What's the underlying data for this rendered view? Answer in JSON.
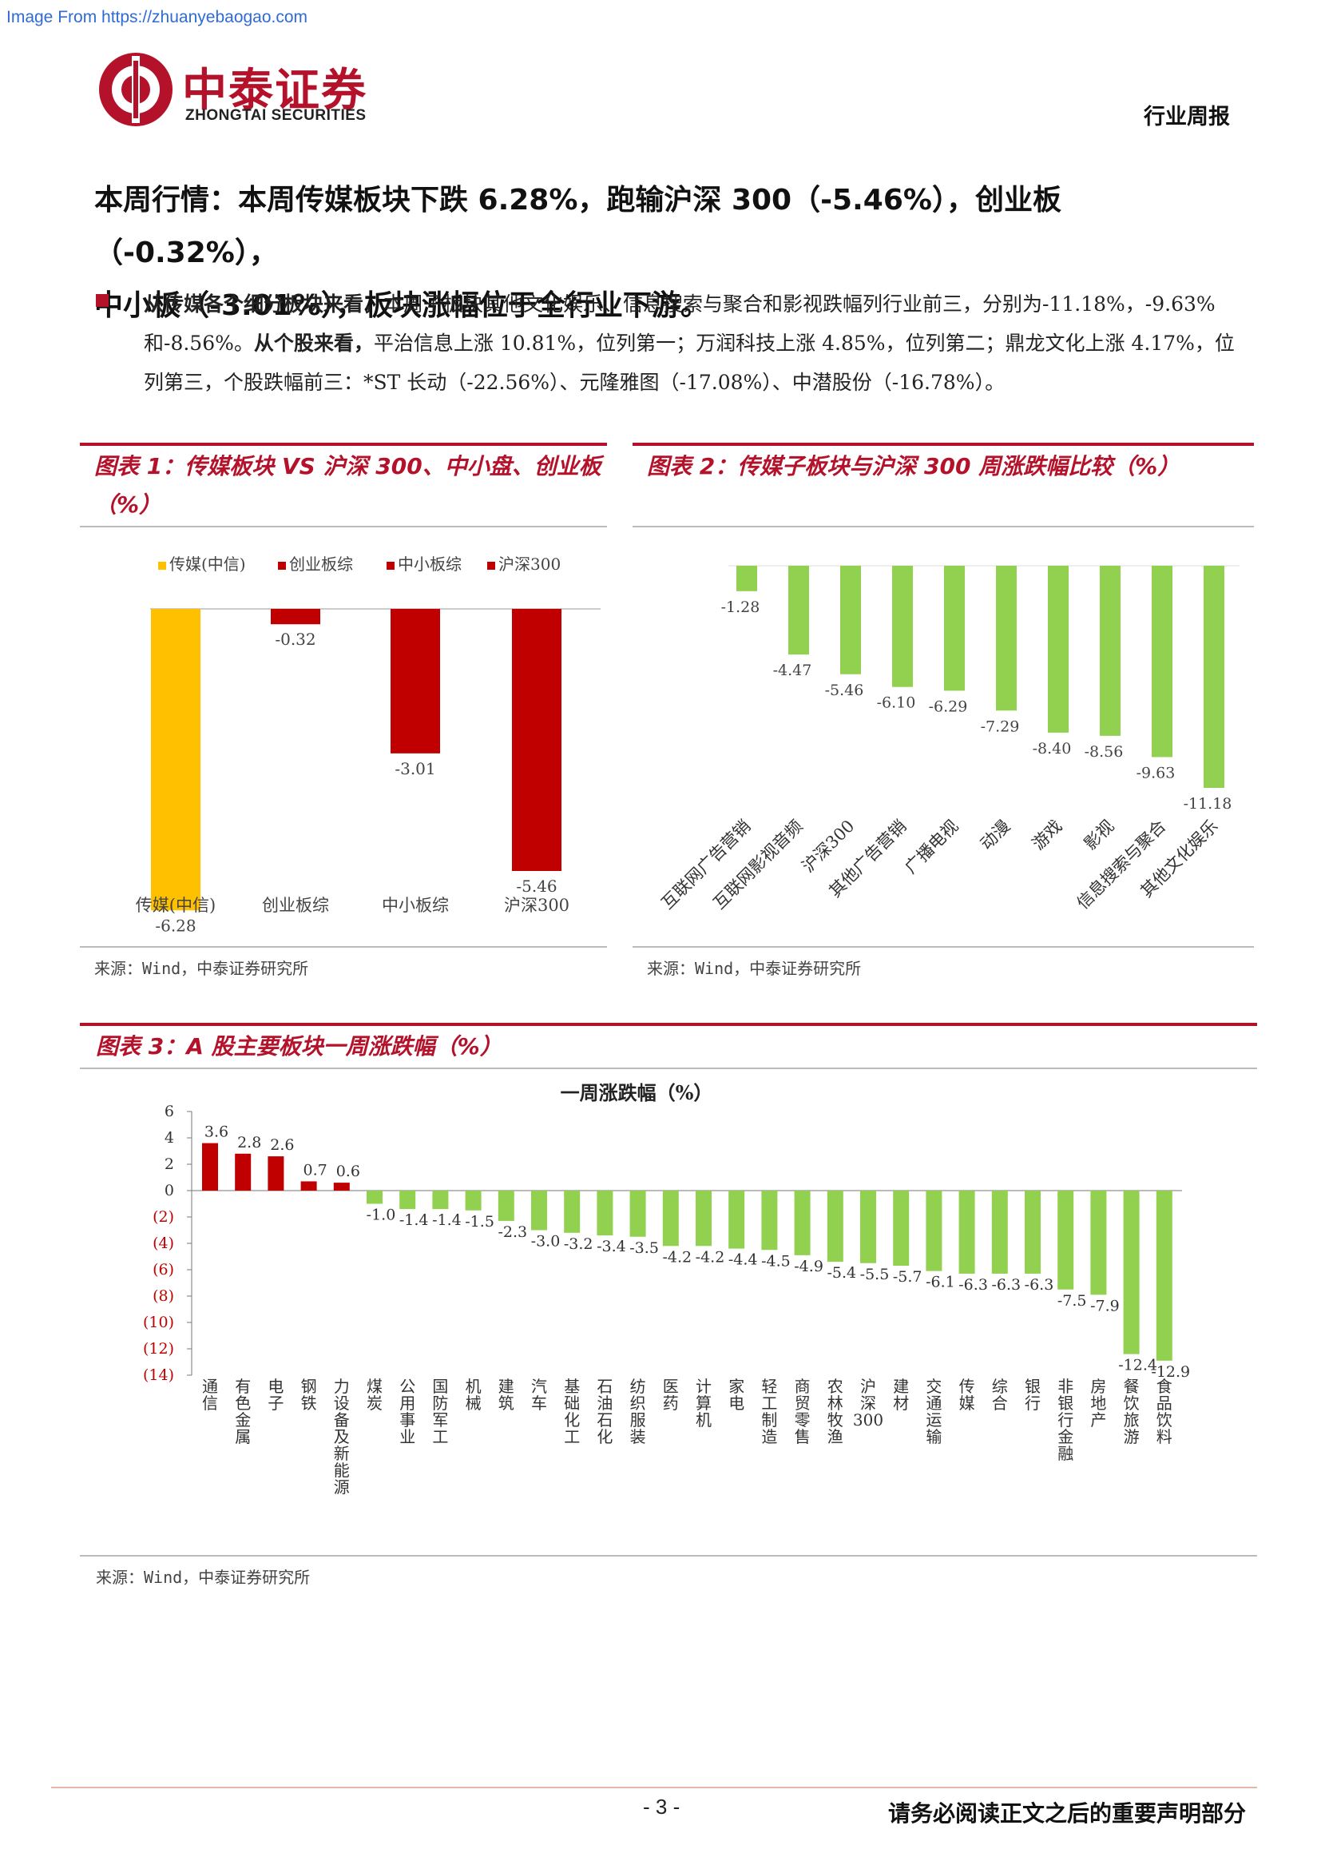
{
  "watermark": "Image From https://zhuanyebaogao.com",
  "logo": {
    "cn": "中泰证券",
    "en": "ZHONGTAI SECURITIES"
  },
  "header": {
    "doc_type": "行业周报"
  },
  "headline": {
    "line1": "本周行情：本周传媒板块下跌 6.28%，跑输沪深 300（-5.46%），创业板（-0.32%），",
    "line2": "中小板（-3.01%），板块涨幅位于全行业下游。"
  },
  "paragraph": {
    "lead1": "从传媒各个细分板块来看，",
    "text1": "本周子板块其他文化娱乐、信息搜索与聚合和影视跌幅列行业前三，分别为-11.18%，-9.63%和-8.56%。",
    "lead2": "从个股来看，",
    "text2": "平治信息上涨 10.81%，位列第一；万润科技上涨 4.85%，位列第二；鼎龙文化上涨 4.17%，位列第三，个股跌幅前三：*ST 长动（-22.56%）、元隆雅图（-17.08%）、中潜股份（-16.78%）。"
  },
  "figure1": {
    "title_line1": "图表 1：传媒板块 VS 沪深 300、中小盘、创业板",
    "title_line2": "（%）",
    "source": "来源：Wind，中泰证券研究所"
  },
  "figure2": {
    "title": "图表 2：传媒子板块与沪深 300 周涨跌幅比较（%）",
    "source": "来源：Wind，中泰证券研究所"
  },
  "figure3": {
    "title": "图表 3：A 股主要板块一周涨跌幅（%）",
    "source": "来源：Wind，中泰证券研究所"
  },
  "footer": {
    "page": "- 3 -",
    "note": "请务必阅读正文之后的重要声明部分"
  },
  "colors": {
    "brand_red": "#b3122a",
    "bar_yellow": "#ffc000",
    "bar_red": "#c00000",
    "bar_green": "#92d050"
  },
  "chart_data": [
    {
      "id": "fig1",
      "type": "bar",
      "categories": [
        "传媒(中信)",
        "创业板综",
        "中小板综",
        "沪深300"
      ],
      "values": [
        -6.28,
        -0.32,
        -3.01,
        -5.46
      ],
      "value_labels": [
        "-6.28",
        "-0.32",
        "-3.01",
        "-5.46"
      ],
      "legend": [
        "传媒(中信)",
        "创业板综",
        "中小板综",
        "沪深300"
      ],
      "legend_position": "top",
      "colors": [
        "#ffc000",
        "#c00000",
        "#c00000",
        "#c00000"
      ],
      "ylim": [
        -6.8,
        0
      ]
    },
    {
      "id": "fig2",
      "type": "bar",
      "categories": [
        "互联网广告营销",
        "互联网影视音频",
        "沪深300",
        "其他广告营销",
        "广播电视",
        "动漫",
        "游戏",
        "影视",
        "信息搜索与聚合",
        "其他文化娱乐"
      ],
      "values": [
        -1.28,
        -4.47,
        -5.46,
        -6.1,
        -6.29,
        -7.29,
        -8.4,
        -8.56,
        -9.63,
        -11.18
      ],
      "value_labels": [
        "-1.28",
        "-4.47",
        "-5.46",
        "-6.10",
        "-6.29",
        "-7.29",
        "-8.40",
        "-8.56",
        "-9.63",
        "-11.18"
      ],
      "color": "#92d050",
      "ylim": [
        -12,
        0
      ]
    },
    {
      "id": "fig3",
      "type": "bar",
      "title": "一周涨跌幅（%）",
      "categories": [
        "通信",
        "有色金属",
        "电子",
        "钢铁",
        "电力设备及新能源",
        "煤炭",
        "公用事业",
        "国防军工",
        "机械",
        "建筑",
        "汽车",
        "基础化工",
        "石油石化",
        "纺织服装",
        "医药",
        "计算机",
        "家电",
        "轻工制造",
        "商贸零售",
        "农林牧渔",
        "沪深300",
        "建材",
        "交通运输",
        "传媒",
        "综合",
        "银行",
        "非银行金融",
        "房地产",
        "餐饮旅游",
        "食品饮料"
      ],
      "category_labels": [
        "通信",
        "有色金属",
        "电子",
        "钢铁",
        "力设备及新能源",
        "煤炭",
        "公用事业",
        "国防军工",
        "机械",
        "建筑",
        "汽车",
        "基础化工",
        "石油石化",
        "纺织服装",
        "医药",
        "计算机",
        "家电",
        "轻工制造",
        "商贸零售",
        "农林牧渔",
        "沪深300",
        "建材",
        "交通运输",
        "传媒",
        "综合",
        "银行",
        "非银行金融",
        "房地产",
        "餐饮旅游",
        "食品饮料"
      ],
      "values": [
        3.6,
        2.8,
        2.6,
        0.7,
        0.6,
        -1.0,
        -1.4,
        -1.4,
        -1.5,
        -2.3,
        -3.0,
        -3.2,
        -3.4,
        -3.5,
        -4.2,
        -4.2,
        -4.4,
        -4.5,
        -4.9,
        -5.4,
        -5.5,
        -5.7,
        -6.1,
        -6.3,
        -6.3,
        -6.3,
        -7.5,
        -7.9,
        -12.4,
        -12.9
      ],
      "value_labels": [
        "3.6",
        "2.8",
        "2.6",
        "0.7",
        "0.6",
        "-1.0",
        "-1.4",
        "-1.4",
        "-1.5",
        "-2.3",
        "-3.0",
        "-3.2",
        "-3.4",
        "-3.5",
        "-4.2",
        "-4.2",
        "-4.4",
        "-4.5",
        "-4.9",
        "-5.4",
        "-5.5",
        "-5.7",
        "-6.1",
        "-6.3",
        "-6.3",
        "-6.3",
        "-7.5",
        "-7.9",
        "-12.4",
        "-12.9"
      ],
      "y_ticks": [
        "6",
        "4",
        "2",
        "0",
        "(2)",
        "(4)",
        "(6)",
        "(8)",
        "(10)",
        "(12)",
        "(14)"
      ],
      "ylim": [
        -14,
        6
      ],
      "positive_color": "#c00000",
      "negative_color": "#92d050"
    }
  ]
}
